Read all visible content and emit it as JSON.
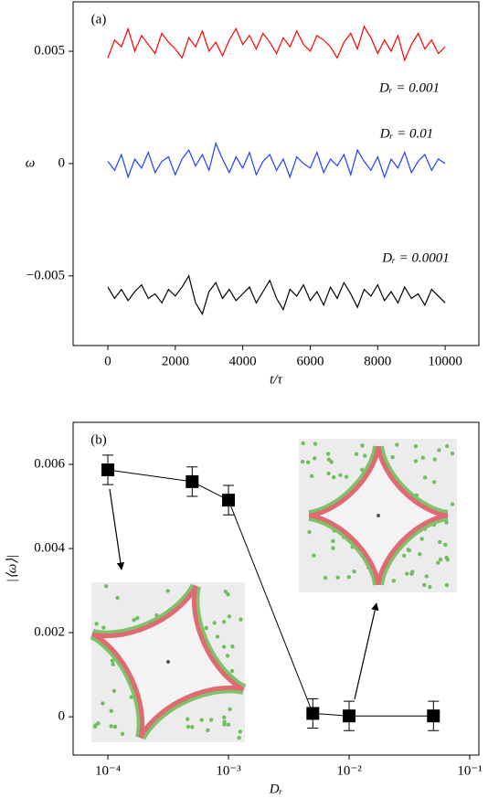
{
  "chart_data": [
    {
      "type": "line",
      "label": "(a)",
      "xlabel": "t/τ",
      "ylabel": "ω",
      "xlim": [
        -1030,
        11000
      ],
      "xticks": [
        0,
        2000,
        4000,
        6000,
        8000,
        10000
      ],
      "ylim": [
        -0.0081,
        0.0072
      ],
      "yticks": [
        {
          "value": -0.005,
          "label": "−0.005"
        },
        0,
        0.005
      ],
      "x": [
        0,
        200,
        400,
        600,
        800,
        1000,
        1200,
        1400,
        1600,
        1800,
        2000,
        2200,
        2400,
        2600,
        2800,
        3000,
        3200,
        3400,
        3600,
        3800,
        4000,
        4200,
        4400,
        4600,
        4800,
        5000,
        5200,
        5400,
        5600,
        5800,
        6000,
        6200,
        6400,
        6600,
        6800,
        7000,
        7200,
        7400,
        7600,
        7800,
        8000,
        8200,
        8400,
        8600,
        8800,
        9000,
        9200,
        9400,
        9600,
        9800,
        10000
      ],
      "series": [
        {
          "name": "Dᵣ = 0.001",
          "color": "#ff0000",
          "values": [
            0.0047,
            0.0055,
            0.0052,
            0.006,
            0.005,
            0.0057,
            0.0053,
            0.0049,
            0.0058,
            0.0054,
            0.0051,
            0.0047,
            0.0056,
            0.0052,
            0.0059,
            0.005,
            0.0054,
            0.0048,
            0.0055,
            0.006,
            0.0053,
            0.0057,
            0.0051,
            0.0058,
            0.0054,
            0.0049,
            0.0056,
            0.0052,
            0.0059,
            0.0053,
            0.005,
            0.0057,
            0.0055,
            0.0052,
            0.0047,
            0.0054,
            0.0058,
            0.0051,
            0.0061,
            0.0056,
            0.0049,
            0.0055,
            0.005,
            0.0057,
            0.0046,
            0.0053,
            0.0058,
            0.0051,
            0.0055,
            0.0049,
            0.0052
          ]
        },
        {
          "name": "Dᵣ = 0.01",
          "color": "#1f3fff",
          "values": [
            0.0001,
            -0.0003,
            0.0004,
            -0.0006,
            0.0002,
            -0.0002,
            0.0005,
            -0.0004,
            0.0001,
            0.0003,
            -0.0005,
            0.0002,
            0.0006,
            -0.0001,
            0.0004,
            -0.0003,
            0.0009,
            0.0002,
            -0.0004,
            0.0003,
            -0.0002,
            0.0005,
            -0.0005,
            0.0001,
            0.0004,
            -0.0003,
            0.0002,
            -0.0006,
            0.0003,
            0,
            -0.0002,
            0.0005,
            -0.0004,
            0.0002,
            -0.0001,
            0.0004,
            -0.0005,
            0.0006,
            0.0001,
            -0.0003,
            0.0003,
            -0.0006,
            0.0002,
            -0.0002,
            0.0005,
            -0.0004,
            0.0001,
            0.0004,
            -0.0003,
            0.0002,
            0
          ]
        },
        {
          "name": "Dᵣ = 0.0001",
          "color": "#000000",
          "values": [
            -0.0055,
            -0.006,
            -0.0056,
            -0.0061,
            -0.0057,
            -0.0054,
            -0.006,
            -0.0058,
            -0.0062,
            -0.0056,
            -0.0059,
            -0.0055,
            -0.005,
            -0.0062,
            -0.0067,
            -0.0057,
            -0.0053,
            -0.006,
            -0.0056,
            -0.0061,
            -0.0058,
            -0.0055,
            -0.0062,
            -0.0057,
            -0.0052,
            -0.006,
            -0.0065,
            -0.0056,
            -0.0059,
            -0.0054,
            -0.0061,
            -0.0057,
            -0.0063,
            -0.0055,
            -0.006,
            -0.0053,
            -0.0058,
            -0.0064,
            -0.0056,
            -0.0059,
            -0.0054,
            -0.0061,
            -0.0057,
            -0.0062,
            -0.0055,
            -0.006,
            -0.0058,
            -0.0063,
            -0.0056,
            -0.0059,
            -0.0062
          ]
        }
      ]
    },
    {
      "type": "scatter",
      "label": "(b)",
      "xlabel": "Dᵣ",
      "ylabel": "|⟨ω⟩|",
      "xscale": "log",
      "xlim": [
        5.15e-05,
        0.119
      ],
      "xticks": [
        {
          "value": 0.0001,
          "label": "10⁻⁴"
        },
        {
          "value": 0.001,
          "label": "10⁻³"
        },
        {
          "value": 0.01,
          "label": "10⁻²"
        },
        {
          "value": 0.1,
          "label": "10⁻¹"
        }
      ],
      "ylim": [
        -0.00091,
        0.007
      ],
      "yticks": [
        0,
        0.002,
        0.004,
        0.006
      ],
      "x": [
        0.0001,
        0.0005,
        0.001,
        0.005,
        0.01,
        0.05
      ],
      "series": [
        {
          "color": "#000000",
          "values": [
            0.00587,
            0.00559,
            0.00515,
            8e-05,
            2e-05,
            2e-05
          ],
          "errors": [
            0.00035,
            0.00035,
            0.00035,
            0.00035,
            0.00035,
            0.00035
          ]
        }
      ]
    }
  ]
}
